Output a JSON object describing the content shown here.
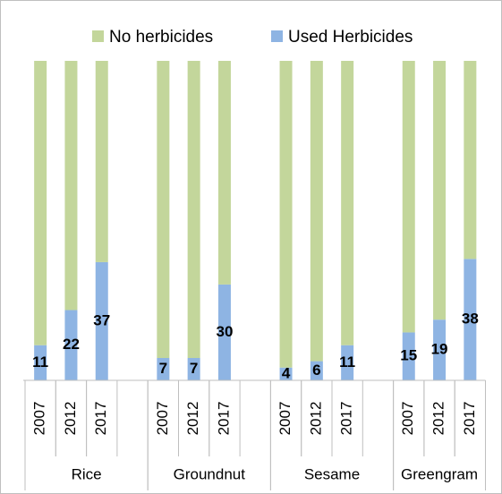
{
  "chart_data": {
    "type": "stacked_bar_100",
    "groups": [
      "Rice",
      "Groundnut",
      "Sesame",
      "Greengram"
    ],
    "categories": [
      "2007",
      "2012",
      "2017",
      "2007",
      "2012",
      "2017",
      "2007",
      "2012",
      "2017",
      "2007",
      "2012",
      "2017"
    ],
    "series": [
      {
        "name": "Used Herbicides",
        "color": "#8eb4e3",
        "values": [
          11,
          22,
          37,
          7,
          7,
          30,
          4,
          6,
          11,
          15,
          19,
          38
        ]
      },
      {
        "name": "No herbicides",
        "color": "#c3d69b",
        "values": [
          89,
          78,
          63,
          93,
          93,
          70,
          96,
          94,
          89,
          85,
          81,
          62
        ]
      }
    ],
    "data_labels_series": 0,
    "ylim": [
      0,
      100
    ]
  }
}
